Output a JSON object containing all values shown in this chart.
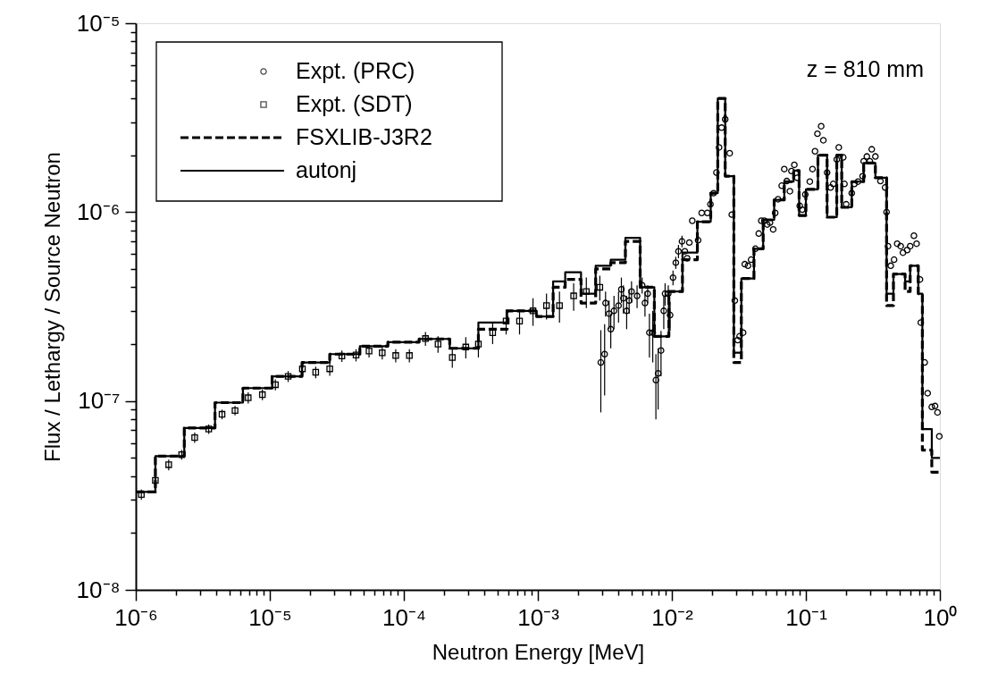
{
  "chart_data": {
    "type": "step",
    "xlabel": "Neutron Energy [MeV]",
    "ylabel": "Flux / Lethargy / Source Neutron",
    "annotations": [
      "z = 810 mm"
    ],
    "log": "xy",
    "legend": "top left",
    "xlim": [
      1e-06,
      1.0
    ],
    "ylim": [
      1e-08,
      1e-05
    ],
    "xticks": [
      {
        "value": 1e-06,
        "label": "10⁻⁶"
      },
      {
        "value": 2e-06,
        "label": null
      },
      {
        "value": 3e-06,
        "label": null
      },
      {
        "value": 4e-06,
        "label": null
      },
      {
        "value": 5e-06,
        "label": null
      },
      {
        "value": 6e-06,
        "label": null
      },
      {
        "value": 7e-06,
        "label": null
      },
      {
        "value": 8e-06,
        "label": null
      },
      {
        "value": 9e-06,
        "label": null
      },
      {
        "value": 1e-05,
        "label": "10⁻⁵"
      },
      {
        "value": 2e-05,
        "label": null
      },
      {
        "value": 3e-05,
        "label": null
      },
      {
        "value": 4e-05,
        "label": null
      },
      {
        "value": 5e-05,
        "label": null
      },
      {
        "value": 6e-05,
        "label": null
      },
      {
        "value": 7e-05,
        "label": null
      },
      {
        "value": 8e-05,
        "label": null
      },
      {
        "value": 9e-05,
        "label": null
      },
      {
        "value": 0.0001,
        "label": "10⁻⁴"
      },
      {
        "value": 0.0002,
        "label": null
      },
      {
        "value": 0.0003,
        "label": null
      },
      {
        "value": 0.0004,
        "label": null
      },
      {
        "value": 0.0005,
        "label": null
      },
      {
        "value": 0.0006,
        "label": null
      },
      {
        "value": 0.0007,
        "label": null
      },
      {
        "value": 0.0008,
        "label": null
      },
      {
        "value": 0.0009,
        "label": null
      },
      {
        "value": 0.001,
        "label": "10⁻³"
      },
      {
        "value": 0.002,
        "label": null
      },
      {
        "value": 0.003,
        "label": null
      },
      {
        "value": 0.004,
        "label": null
      },
      {
        "value": 0.005,
        "label": null
      },
      {
        "value": 0.006,
        "label": null
      },
      {
        "value": 0.007,
        "label": null
      },
      {
        "value": 0.008,
        "label": null
      },
      {
        "value": 0.009,
        "label": null
      },
      {
        "value": 0.01,
        "label": "10⁻²"
      },
      {
        "value": 0.02,
        "label": null
      },
      {
        "value": 0.03,
        "label": null
      },
      {
        "value": 0.04,
        "label": null
      },
      {
        "value": 0.05,
        "label": null
      },
      {
        "value": 0.06,
        "label": null
      },
      {
        "value": 0.07,
        "label": null
      },
      {
        "value": 0.08,
        "label": null
      },
      {
        "value": 0.09,
        "label": null
      },
      {
        "value": 0.1,
        "label": "10⁻¹"
      },
      {
        "value": 0.2,
        "label": null
      },
      {
        "value": 0.3,
        "label": null
      },
      {
        "value": 0.4,
        "label": null
      },
      {
        "value": 0.5,
        "label": null
      },
      {
        "value": 0.6,
        "label": null
      },
      {
        "value": 0.7,
        "label": null
      },
      {
        "value": 0.8,
        "label": null
      },
      {
        "value": 0.9,
        "label": null
      },
      {
        "value": 1.0,
        "label": "10⁰"
      }
    ],
    "yticks": [
      {
        "value": 1e-08,
        "label": "10⁻⁸"
      },
      {
        "value": 2e-08,
        "label": null
      },
      {
        "value": 3e-08,
        "label": null
      },
      {
        "value": 4e-08,
        "label": null
      },
      {
        "value": 5e-08,
        "label": null
      },
      {
        "value": 6e-08,
        "label": null
      },
      {
        "value": 7e-08,
        "label": null
      },
      {
        "value": 8e-08,
        "label": null
      },
      {
        "value": 9e-08,
        "label": null
      },
      {
        "value": 1e-07,
        "label": "10⁻⁷"
      },
      {
        "value": 2e-07,
        "label": null
      },
      {
        "value": 3e-07,
        "label": null
      },
      {
        "value": 4e-07,
        "label": null
      },
      {
        "value": 5e-07,
        "label": null
      },
      {
        "value": 6e-07,
        "label": null
      },
      {
        "value": 7e-07,
        "label": null
      },
      {
        "value": 8e-07,
        "label": null
      },
      {
        "value": 9e-07,
        "label": null
      },
      {
        "value": 1e-06,
        "label": "10⁻⁶"
      },
      {
        "value": 2e-06,
        "label": null
      },
      {
        "value": 3e-06,
        "label": null
      },
      {
        "value": 4e-06,
        "label": null
      },
      {
        "value": 5e-06,
        "label": null
      },
      {
        "value": 6e-06,
        "label": null
      },
      {
        "value": 7e-06,
        "label": null
      },
      {
        "value": 8e-06,
        "label": null
      },
      {
        "value": 9e-06,
        "label": null
      },
      {
        "value": 1e-05,
        "label": "10⁻⁵"
      }
    ],
    "series": [
      {
        "name": "Expt. (PRC)",
        "type": "scatter",
        "marker": "circle",
        "color": "#000000",
        "x": [
          0.00295,
          0.00315,
          0.0032,
          0.0034,
          0.0035,
          0.0037,
          0.004,
          0.0042,
          0.00435,
          0.0046,
          0.0048,
          0.005,
          0.0055,
          0.006,
          0.0063,
          0.0066,
          0.0068,
          0.0072,
          0.0076,
          0.0079,
          0.0083,
          0.0087,
          0.0089,
          0.0094,
          0.0097,
          0.0102,
          0.0107,
          0.0112,
          0.0119,
          0.0125,
          0.013,
          0.0135,
          0.0142,
          0.0157,
          0.0167,
          0.0184,
          0.0194,
          0.0205,
          0.0215,
          0.0225,
          0.0235,
          0.025,
          0.027,
          0.028,
          0.0295,
          0.031,
          0.032,
          0.034,
          0.035,
          0.037,
          0.039,
          0.042,
          0.0445,
          0.0465,
          0.049,
          0.0515,
          0.054,
          0.057,
          0.059,
          0.062,
          0.066,
          0.069,
          0.072,
          0.076,
          0.078,
          0.082,
          0.086,
          0.09,
          0.094,
          0.099,
          0.107,
          0.112,
          0.117,
          0.122,
          0.13,
          0.135,
          0.144,
          0.153,
          0.16,
          0.17,
          0.176,
          0.19,
          0.194,
          0.2,
          0.22,
          0.23,
          0.245,
          0.265,
          0.27,
          0.285,
          0.3,
          0.31,
          0.33,
          0.36,
          0.39,
          0.4,
          0.41,
          0.43,
          0.455,
          0.48,
          0.51,
          0.53,
          0.57,
          0.6,
          0.64,
          0.67,
          0.71,
          0.72,
          0.77,
          0.81,
          0.87,
          0.92,
          0.96,
          0.99
        ],
        "values": [
          1.6e-07,
          1.77e-07,
          3.3e-07,
          2.9e-07,
          2.4e-07,
          3e-07,
          3.2e-07,
          3.9e-07,
          3.5e-07,
          3e-07,
          3.4e-07,
          3.8e-07,
          3.6e-07,
          4.1e-07,
          3.3e-07,
          3.7e-07,
          2.3e-07,
          2.3e-07,
          1.29e-07,
          1.4e-07,
          1.85e-07,
          3e-07,
          3.7e-07,
          3.7e-07,
          2.85e-07,
          4.5e-07,
          5.4e-07,
          6.2e-07,
          7e-07,
          6.2e-07,
          5.7e-07,
          6.9e-07,
          9e-07,
          7.1e-07,
          9.9e-07,
          9.9e-07,
          1.1e-06,
          1.26e-06,
          1.62e-06,
          2.2e-06,
          2.8e-06,
          3.1e-06,
          2.05e-06,
          9.7e-07,
          3.4e-07,
          2.1e-07,
          2.2e-07,
          2.3e-07,
          5.3e-07,
          5.2e-07,
          5.6e-07,
          6.4e-07,
          7.7e-07,
          9e-07,
          9e-07,
          8.6e-07,
          8.8e-07,
          8.1e-07,
          9.9e-07,
          1.17e-06,
          1.38e-06,
          1.69e-06,
          1.46e-06,
          1.29e-06,
          1.65e-06,
          1.78e-06,
          1.52e-06,
          1.08e-06,
          1.03e-06,
          1.24e-06,
          1.45e-06,
          1.69e-06,
          2.1e-06,
          2.6e-06,
          2.85e-06,
          2.4e-06,
          1.62e-06,
          1.35e-06,
          1.41e-06,
          1.9e-06,
          2.2e-06,
          1.95e-06,
          1.41e-06,
          1.1e-06,
          1.26e-06,
          1.41e-06,
          1.45e-06,
          1.55e-06,
          1.86e-06,
          1.97e-06,
          1.86e-06,
          2.15e-06,
          1.97e-06,
          1.46e-06,
          1.35e-06,
          1e-06,
          6.6e-07,
          5.2e-07,
          5.6e-07,
          6.8e-07,
          6.6e-07,
          6.1e-07,
          6.3e-07,
          6.6e-07,
          7.5e-07,
          6.8e-07,
          4.4e-07,
          2.6e-07,
          1.6e-07,
          1.1e-07,
          9.3e-08,
          9.4e-08,
          8.7e-08,
          6.5e-08
        ],
        "errors": [
          [
            8.7e-08,
            2.37e-07
          ],
          [
            1.07e-07,
            2.55e-07
          ],
          5e-08,
          5e-08,
          5e-08,
          6e-08,
          6e-08,
          6e-08,
          6e-08,
          6e-08,
          5e-08,
          5e-08,
          5e-08,
          4e-08,
          5e-08,
          4e-08,
          6e-08,
          7e-08,
          [
            8e-08,
            1.77e-07
          ],
          [
            9e-08,
            1.9e-07
          ],
          5e-08,
          6e-08,
          5e-08,
          4e-08,
          5e-08,
          4e-08,
          4e-08,
          5e-08,
          5e-08,
          null,
          null,
          null,
          null,
          null,
          null,
          null,
          null,
          null,
          null,
          null,
          null,
          null,
          null,
          null,
          null,
          null,
          null,
          null,
          null,
          null,
          null,
          null,
          null,
          null,
          null,
          null,
          null,
          null,
          null,
          null,
          null,
          null,
          null,
          null,
          null,
          null,
          null,
          null,
          null,
          null,
          null,
          null,
          null,
          null,
          null,
          null,
          null,
          null,
          null,
          null,
          null,
          null,
          null,
          null,
          null,
          null,
          null,
          null,
          null,
          null,
          null,
          null,
          null,
          null,
          null,
          null,
          null,
          null,
          null,
          null,
          null,
          null,
          null,
          null,
          null,
          null,
          null,
          null,
          null,
          null,
          null,
          null,
          null,
          null
        ]
      },
      {
        "name": "Expt. (SDT)",
        "type": "scatter",
        "marker": "square",
        "color": "#000000",
        "x": [
          1.1e-06,
          1.4e-06,
          1.76e-06,
          2.2e-06,
          2.75e-06,
          3.5e-06,
          4.4e-06,
          5.5e-06,
          6.9e-06,
          8.8e-06,
          1.1e-05,
          1.37e-05,
          1.75e-05,
          2.2e-05,
          2.8e-05,
          3.45e-05,
          4.4e-05,
          5.5e-05,
          6.9e-05,
          8.7e-05,
          0.00011,
          0.000145,
          0.00018,
          0.00023,
          0.00029,
          0.00036,
          0.00046,
          0.00058,
          0.00073,
          0.00092,
          0.00116,
          0.00145,
          0.00185,
          0.0023,
          0.0029
        ],
        "values": [
          3.2e-08,
          3.8e-08,
          4.6e-08,
          5.2e-08,
          6.4e-08,
          7.1e-08,
          8.5e-08,
          8.9e-08,
          1.04e-07,
          1.08e-07,
          1.22e-07,
          1.35e-07,
          1.48e-07,
          1.42e-07,
          1.48e-07,
          1.73e-07,
          1.75e-07,
          1.84e-07,
          1.8e-07,
          1.74e-07,
          1.74e-07,
          2.14e-07,
          2e-07,
          1.7e-07,
          1.93e-07,
          2e-07,
          2.3e-07,
          2.65e-07,
          2.65e-07,
          3e-07,
          3.2e-07,
          3.2e-07,
          3.6e-07,
          3.8e-07,
          4e-07
        ],
        "errors": [
          2e-09,
          2e-09,
          3e-09,
          3e-09,
          4e-09,
          4e-09,
          5e-09,
          5e-09,
          7e-09,
          7e-09,
          8e-09,
          9e-09,
          1e-08,
          1e-08,
          1.2e-08,
          1.2e-08,
          1.3e-08,
          1.4e-08,
          1.4e-08,
          1.4e-08,
          1.4e-08,
          1.8e-08,
          2e-08,
          2e-08,
          2.5e-08,
          3e-08,
          3e-08,
          4e-08,
          4e-08,
          5e-08,
          5e-08,
          6e-08,
          6e-08,
          7e-08,
          6e-08
        ]
      },
      {
        "name": "FSXLIB-J3R2",
        "line_style": "dashed",
        "color": "#000000",
        "x": [
          1e-06,
          1.4e-06,
          2.3e-06,
          3.9e-06,
          6.3e-06,
          1.04e-05,
          1.74e-05,
          2.8e-05,
          4.7e-05,
          7.6e-05,
          0.00013,
          0.00022,
          0.00036,
          0.00059,
          0.00098,
          0.0013,
          0.0016,
          0.0021,
          0.0027,
          0.0035,
          0.0045,
          0.0058,
          0.0074,
          0.0095,
          0.012,
          0.0155,
          0.0195,
          0.022,
          0.025,
          0.029,
          0.033,
          0.041,
          0.048,
          0.058,
          0.069,
          0.081,
          0.089,
          0.1,
          0.123,
          0.144,
          0.17,
          0.185,
          0.22,
          0.27,
          0.33,
          0.4,
          0.45,
          0.55,
          0.6,
          0.69,
          0.74,
          0.87,
          1.0
        ],
        "values": [
          3.3e-08,
          5.1e-08,
          7.2e-08,
          9.8e-08,
          1.17e-07,
          1.35e-07,
          1.6e-07,
          1.77e-07,
          1.95e-07,
          2.05e-07,
          2.13e-07,
          1.9e-07,
          2.4e-07,
          3e-07,
          2.8e-07,
          4e-07,
          4.4e-07,
          3.3e-07,
          5e-07,
          5.4e-07,
          7e-07,
          4e-07,
          2.2e-07,
          3.8e-07,
          5.6e-07,
          8.9e-07,
          1.26e-06,
          4e-06,
          1.55e-06,
          1.6e-07,
          4.45e-07,
          6.4e-07,
          9.1e-07,
          1.16e-06,
          1.45e-06,
          1.66e-06,
          9.6e-07,
          1.32e-06,
          2e-06,
          9.4e-07,
          2e-06,
          1.06e-06,
          1.45e-06,
          1.82e-06,
          1.52e-06,
          3.2e-07,
          4.7e-07,
          3.8e-07,
          5.2e-07,
          3.7e-07,
          5.5e-08,
          4.2e-08,
          4.2e-08
        ]
      },
      {
        "name": "autonj",
        "line_style": "solid",
        "color": "#000000",
        "x": [
          1e-06,
          1.4e-06,
          2.3e-06,
          3.9e-06,
          6.3e-06,
          1.04e-05,
          1.74e-05,
          2.8e-05,
          4.7e-05,
          7.6e-05,
          0.00013,
          0.00022,
          0.00036,
          0.00059,
          0.00098,
          0.0013,
          0.0016,
          0.0021,
          0.0027,
          0.0035,
          0.0045,
          0.0058,
          0.0074,
          0.0095,
          0.012,
          0.0155,
          0.0195,
          0.022,
          0.025,
          0.029,
          0.033,
          0.041,
          0.048,
          0.058,
          0.069,
          0.081,
          0.089,
          0.1,
          0.123,
          0.144,
          0.17,
          0.185,
          0.22,
          0.27,
          0.33,
          0.4,
          0.45,
          0.55,
          0.6,
          0.69,
          0.74,
          0.87,
          1.0
        ],
        "values": [
          3.3e-08,
          5.1e-08,
          7.2e-08,
          9.8e-08,
          1.17e-07,
          1.35e-07,
          1.6e-07,
          1.77e-07,
          1.95e-07,
          2.05e-07,
          2.13e-07,
          1.9e-07,
          2.6e-07,
          3e-07,
          2.8e-07,
          4.3e-07,
          4.8e-07,
          3.7e-07,
          5.2e-07,
          5.6e-07,
          7.3e-07,
          4e-07,
          2.2e-07,
          3.8e-07,
          6.1e-07,
          8.9e-07,
          1.26e-06,
          4e-06,
          1.55e-06,
          1.8e-07,
          4.45e-07,
          6.4e-07,
          9.1e-07,
          1.16e-06,
          1.45e-06,
          1.66e-06,
          9.6e-07,
          1.32e-06,
          2e-06,
          9.4e-07,
          2e-06,
          1.06e-06,
          1.45e-06,
          1.82e-06,
          1.52e-06,
          3.7e-07,
          4.7e-07,
          4.3e-07,
          5.2e-07,
          3.7e-07,
          7.1e-08,
          5e-08,
          5e-08
        ]
      }
    ]
  }
}
